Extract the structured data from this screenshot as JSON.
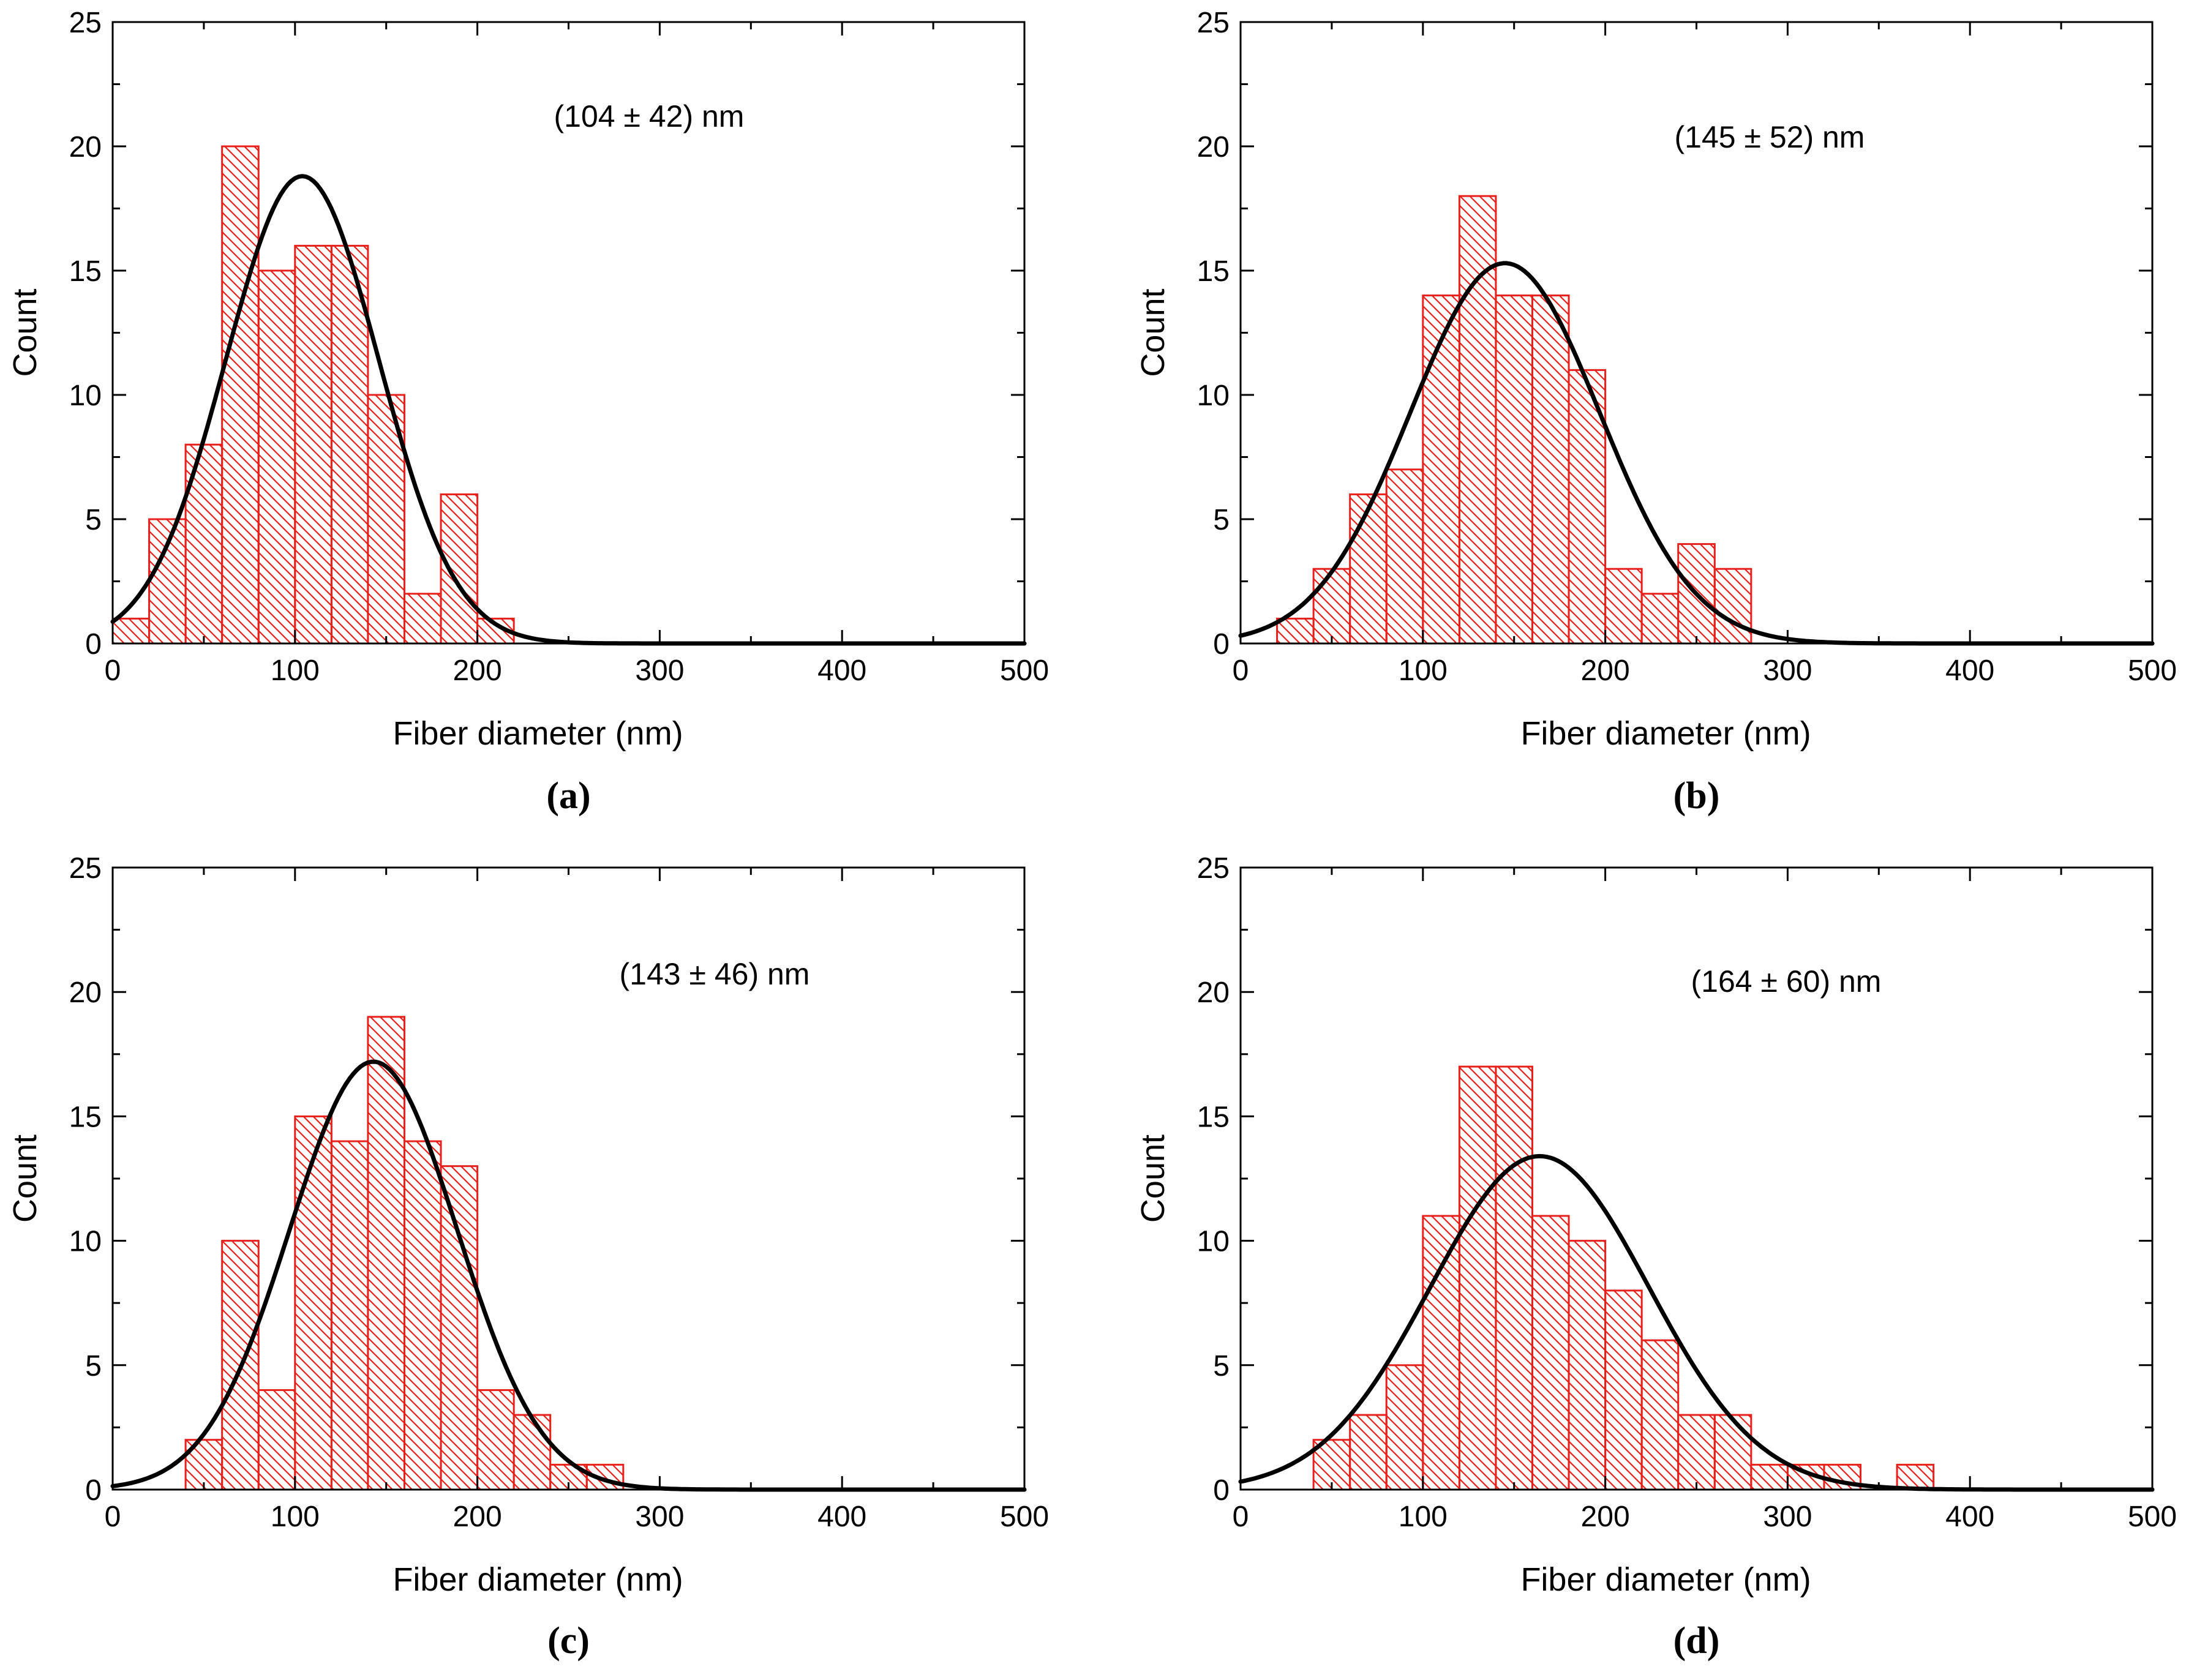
{
  "colors": {
    "bar": "#e8201c",
    "fit": "#000000",
    "axis": "#000000"
  },
  "chart_data": [
    {
      "type": "bar",
      "panel": "a",
      "panel_label": "(a)",
      "xlabel": "Fiber diameter (nm)",
      "ylabel": "Count",
      "xlim": [
        0,
        500
      ],
      "ylim": [
        0,
        25
      ],
      "xticks": [
        0,
        100,
        200,
        300,
        400,
        500
      ],
      "yticks": [
        0,
        5,
        10,
        15,
        20,
        25
      ],
      "bin_width": 20,
      "bin_starts": [
        0,
        20,
        40,
        60,
        80,
        100,
        120,
        140,
        160,
        180,
        200
      ],
      "values": [
        1,
        5,
        8,
        20,
        15,
        16,
        16,
        10,
        2,
        6,
        1
      ],
      "annotation": "(104 ± 42) nm",
      "fit": {
        "type": "gaussian",
        "mean": 104,
        "sd": 42,
        "peak": 18.8
      }
    },
    {
      "type": "bar",
      "panel": "b",
      "panel_label": "(b)",
      "xlabel": "Fiber diameter (nm)",
      "ylabel": "Count",
      "xlim": [
        0,
        500
      ],
      "ylim": [
        0,
        25
      ],
      "xticks": [
        0,
        100,
        200,
        300,
        400,
        500
      ],
      "yticks": [
        0,
        5,
        10,
        15,
        20,
        25
      ],
      "bin_width": 20,
      "bin_starts": [
        20,
        40,
        60,
        80,
        100,
        120,
        140,
        160,
        180,
        200,
        220,
        240,
        260
      ],
      "values": [
        1,
        3,
        6,
        7,
        14,
        18,
        14,
        14,
        11,
        3,
        2,
        4,
        3
      ],
      "annotation": "(145 ± 52) nm",
      "fit": {
        "type": "gaussian",
        "mean": 145,
        "sd": 52,
        "peak": 15.3
      }
    },
    {
      "type": "bar",
      "panel": "c",
      "panel_label": "(c)",
      "xlabel": "Fiber diameter (nm)",
      "ylabel": "Count",
      "xlim": [
        0,
        500
      ],
      "ylim": [
        0,
        25
      ],
      "xticks": [
        0,
        100,
        200,
        300,
        400,
        500
      ],
      "yticks": [
        0,
        5,
        10,
        15,
        20,
        25
      ],
      "bin_width": 20,
      "bin_starts": [
        40,
        60,
        80,
        100,
        120,
        140,
        160,
        180,
        200,
        220,
        240,
        260
      ],
      "values": [
        2,
        10,
        4,
        15,
        14,
        19,
        14,
        13,
        4,
        3,
        1,
        1
      ],
      "annotation": "(143 ± 46) nm",
      "fit": {
        "type": "gaussian",
        "mean": 143,
        "sd": 46,
        "peak": 17.2
      }
    },
    {
      "type": "bar",
      "panel": "d",
      "panel_label": "(d)",
      "xlabel": "Fiber diameter (nm)",
      "ylabel": "Count",
      "xlim": [
        0,
        500
      ],
      "ylim": [
        0,
        25
      ],
      "xticks": [
        0,
        100,
        200,
        300,
        400,
        500
      ],
      "yticks": [
        0,
        5,
        10,
        15,
        20,
        25
      ],
      "bin_width": 20,
      "bin_starts": [
        40,
        60,
        80,
        100,
        120,
        140,
        160,
        180,
        200,
        220,
        240,
        260,
        280,
        300,
        320,
        340,
        360
      ],
      "values": [
        2,
        3,
        5,
        11,
        17,
        17,
        11,
        10,
        8,
        6,
        3,
        3,
        1,
        1,
        1,
        0,
        1
      ],
      "annotation": "(164 ± 60) nm",
      "fit": {
        "type": "gaussian",
        "mean": 164,
        "sd": 60,
        "peak": 13.4
      }
    }
  ]
}
